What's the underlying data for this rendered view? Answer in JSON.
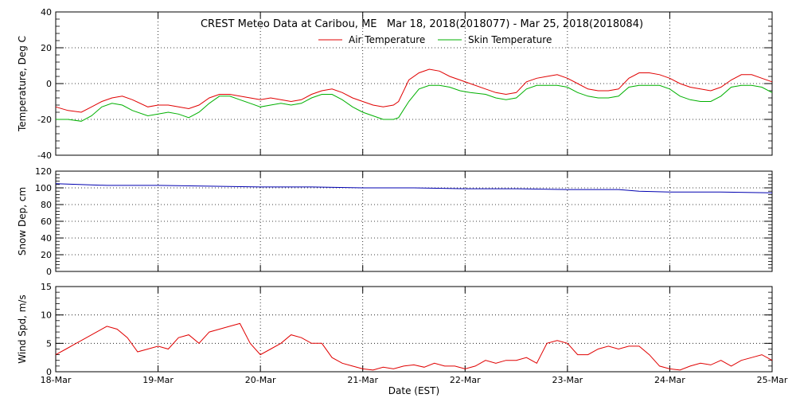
{
  "chart_data": {
    "type": "line",
    "title": "CREST Meteo Data at Caribou, ME   Mar 18, 2018(2018077) - Mar 25, 2018(2018084)",
    "xlabel": "Date (EST)",
    "x_ticks": [
      "18-Mar",
      "19-Mar",
      "20-Mar",
      "21-Mar",
      "22-Mar",
      "23-Mar",
      "24-Mar",
      "25-Mar"
    ],
    "xlim": [
      0,
      7
    ],
    "colors": {
      "air": "#e00000",
      "skin": "#00b000",
      "snow": "#0000b0",
      "wind": "#e00000"
    },
    "panels": [
      {
        "id": "temperature",
        "ylabel": "Temperature, Deg C",
        "ylim": [
          -40,
          40
        ],
        "yticks": [
          -40,
          -20,
          0,
          20,
          40
        ],
        "grid": true,
        "legend_position": "top",
        "series": [
          {
            "name": "Air Temperature",
            "color_key": "air",
            "x": [
              0,
              0.12,
              0.25,
              0.35,
              0.45,
              0.55,
              0.65,
              0.75,
              0.9,
              1.0,
              1.1,
              1.2,
              1.3,
              1.4,
              1.5,
              1.6,
              1.7,
              1.8,
              1.9,
              2.0,
              2.1,
              2.2,
              2.3,
              2.4,
              2.5,
              2.6,
              2.7,
              2.8,
              2.9,
              3.0,
              3.1,
              3.2,
              3.3,
              3.35,
              3.45,
              3.55,
              3.65,
              3.75,
              3.85,
              3.95,
              4.05,
              4.2,
              4.3,
              4.4,
              4.5,
              4.6,
              4.7,
              4.8,
              4.9,
              5.0,
              5.1,
              5.2,
              5.3,
              5.4,
              5.5,
              5.6,
              5.7,
              5.8,
              5.9,
              6.0,
              6.1,
              6.2,
              6.3,
              6.4,
              6.5,
              6.6,
              6.7,
              6.8,
              6.9,
              7.0
            ],
            "values": [
              -13,
              -15,
              -16,
              -13,
              -10,
              -8,
              -7,
              -9,
              -13,
              -12,
              -12,
              -13,
              -14,
              -12,
              -8,
              -6,
              -6,
              -7,
              -8,
              -9,
              -8,
              -9,
              -10,
              -9,
              -6,
              -4,
              -3,
              -5,
              -8,
              -10,
              -12,
              -13,
              -12,
              -10,
              2,
              6,
              8,
              7,
              4,
              2,
              0,
              -3,
              -5,
              -6,
              -5,
              1,
              3,
              4,
              5,
              3,
              0,
              -3,
              -4,
              -4,
              -3,
              3,
              6,
              6,
              5,
              3,
              0,
              -2,
              -3,
              -4,
              -2,
              2,
              5,
              5,
              3,
              1
            ]
          },
          {
            "name": "Skin Temperature",
            "color_key": "skin",
            "x": [
              0,
              0.12,
              0.25,
              0.35,
              0.45,
              0.55,
              0.65,
              0.75,
              0.9,
              1.0,
              1.1,
              1.2,
              1.3,
              1.4,
              1.5,
              1.6,
              1.7,
              1.8,
              1.9,
              2.0,
              2.1,
              2.2,
              2.3,
              2.4,
              2.5,
              2.6,
              2.7,
              2.8,
              2.9,
              3.0,
              3.1,
              3.2,
              3.3,
              3.35,
              3.45,
              3.55,
              3.65,
              3.75,
              3.85,
              3.95,
              4.05,
              4.2,
              4.3,
              4.4,
              4.5,
              4.6,
              4.7,
              4.8,
              4.9,
              5.0,
              5.1,
              5.2,
              5.3,
              5.4,
              5.5,
              5.6,
              5.7,
              5.8,
              5.9,
              6.0,
              6.1,
              6.2,
              6.3,
              6.4,
              6.5,
              6.6,
              6.7,
              6.8,
              6.9,
              7.0
            ],
            "values": [
              -20,
              -20,
              -21,
              -18,
              -13,
              -11,
              -12,
              -15,
              -18,
              -17,
              -16,
              -17,
              -19,
              -16,
              -11,
              -7,
              -7,
              -9,
              -11,
              -13,
              -12,
              -11,
              -12,
              -11,
              -8,
              -6,
              -6,
              -9,
              -13,
              -16,
              -18,
              -20,
              -20,
              -19,
              -10,
              -3,
              -1,
              -1,
              -2,
              -4,
              -5,
              -6,
              -8,
              -9,
              -8,
              -3,
              -1,
              -1,
              -1,
              -2,
              -5,
              -7,
              -8,
              -8,
              -7,
              -2,
              -1,
              -1,
              -1,
              -3,
              -7,
              -9,
              -10,
              -10,
              -7,
              -2,
              -1,
              -1,
              -2,
              -5
            ]
          }
        ]
      },
      {
        "id": "snow",
        "ylabel": "Snow Dep, cm",
        "ylim": [
          0,
          120
        ],
        "yticks": [
          0,
          20,
          40,
          60,
          80,
          100,
          120
        ],
        "grid": true,
        "series": [
          {
            "color_key": "snow",
            "x": [
              0,
              0.5,
              1.0,
              1.5,
              2.0,
              2.5,
              3.0,
              3.5,
              4.0,
              4.5,
              5.0,
              5.5,
              5.7,
              6.0,
              6.5,
              7.0
            ],
            "values": [
              105,
              103,
              103,
              102,
              101,
              101,
              100,
              100,
              99,
              99,
              98,
              98,
              96,
              95,
              95,
              94
            ]
          }
        ]
      },
      {
        "id": "wind",
        "ylabel": "Wind Spd, m/s",
        "ylim": [
          0,
          15
        ],
        "yticks": [
          0,
          5,
          10,
          15
        ],
        "grid": true,
        "series": [
          {
            "color_key": "wind",
            "x": [
              0,
              0.1,
              0.2,
              0.3,
              0.4,
              0.5,
              0.6,
              0.7,
              0.8,
              0.9,
              1.0,
              1.1,
              1.2,
              1.3,
              1.4,
              1.5,
              1.6,
              1.7,
              1.8,
              1.9,
              2.0,
              2.1,
              2.2,
              2.3,
              2.4,
              2.5,
              2.6,
              2.7,
              2.8,
              2.9,
              3.0,
              3.1,
              3.2,
              3.3,
              3.4,
              3.5,
              3.6,
              3.7,
              3.8,
              3.9,
              4.0,
              4.1,
              4.2,
              4.3,
              4.4,
              4.5,
              4.6,
              4.7,
              4.8,
              4.9,
              5.0,
              5.1,
              5.2,
              5.3,
              5.4,
              5.5,
              5.6,
              5.7,
              5.8,
              5.9,
              6.0,
              6.1,
              6.2,
              6.3,
              6.4,
              6.5,
              6.6,
              6.7,
              6.8,
              6.9,
              7.0
            ],
            "values": [
              3,
              4,
              5,
              6,
              7,
              8,
              7.5,
              6,
              3.5,
              4,
              4.5,
              4,
              6,
              6.5,
              5,
              7,
              7.5,
              8,
              8.5,
              5,
              3,
              4,
              5,
              6.5,
              6,
              5,
              5,
              2.5,
              1.5,
              1,
              0.5,
              0.3,
              0.8,
              0.5,
              1,
              1.2,
              0.8,
              1.5,
              1,
              1,
              0.5,
              1,
              2,
              1.5,
              2,
              2,
              2.5,
              1.5,
              5,
              5.5,
              5,
              3,
              3,
              4,
              4.5,
              4,
              4.5,
              4.5,
              3,
              1,
              0.5,
              0.3,
              1,
              1.5,
              1.2,
              2,
              1,
              2,
              2.5,
              3,
              2
            ]
          }
        ]
      }
    ]
  }
}
